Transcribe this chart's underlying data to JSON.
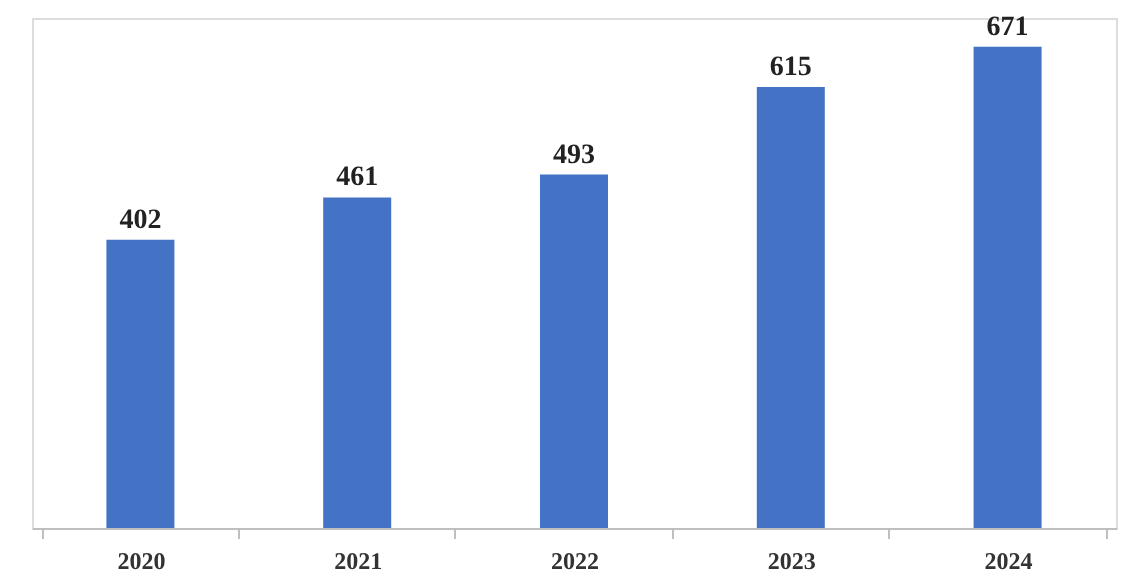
{
  "chart_data": {
    "type": "bar",
    "categories": [
      "2020",
      "2021",
      "2022",
      "2023",
      "2024"
    ],
    "values": [
      402,
      461,
      493,
      615,
      671
    ],
    "color": "#4472c4",
    "data_labels": true
  }
}
